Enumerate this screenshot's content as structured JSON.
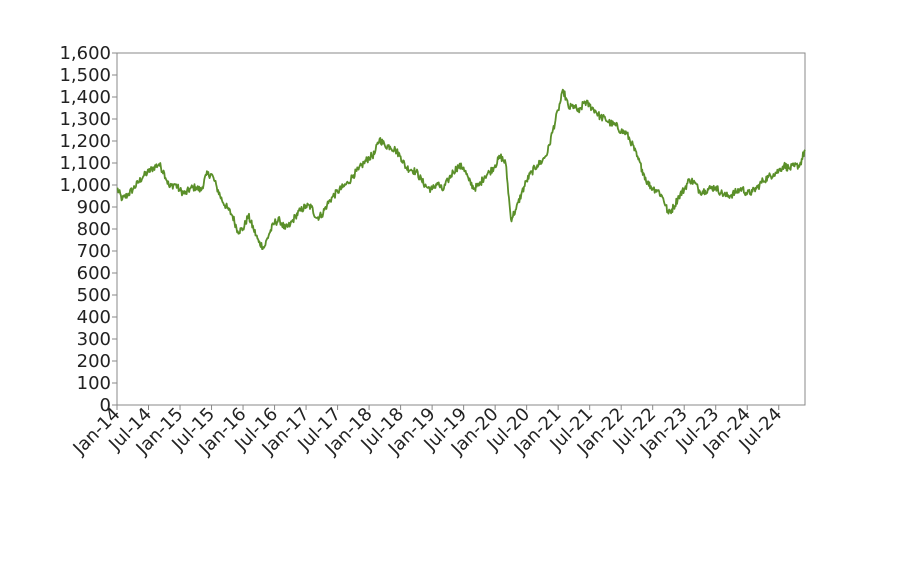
{
  "chart_data": {
    "type": "line",
    "title": "",
    "xlabel": "",
    "ylabel": "",
    "ylim": [
      0,
      1600
    ],
    "xlim": [
      "2014-01",
      "2024-12"
    ],
    "y_ticks": [
      0,
      100,
      200,
      300,
      400,
      500,
      600,
      700,
      800,
      900,
      1000,
      1100,
      1200,
      1300,
      1400,
      1500,
      1600
    ],
    "y_tick_labels": [
      "0",
      "100",
      "200",
      "300",
      "400",
      "500",
      "600",
      "700",
      "800",
      "900",
      "1,000",
      "1,100",
      "1,200",
      "1,300",
      "1,400",
      "1,500",
      "1,600"
    ],
    "x_ticks": [
      "2014-01",
      "2014-07",
      "2015-01",
      "2015-07",
      "2016-01",
      "2016-07",
      "2017-01",
      "2017-07",
      "2018-01",
      "2018-07",
      "2019-01",
      "2019-07",
      "2020-01",
      "2020-07",
      "2021-01",
      "2021-07",
      "2022-01",
      "2022-07",
      "2023-01",
      "2023-07",
      "2024-01",
      "2024-07"
    ],
    "x_tick_labels": [
      "Jan-14",
      "Jul-14",
      "Jan-15",
      "Jul-15",
      "Jan-16",
      "Jul-16",
      "Jan-17",
      "Jul-17",
      "Jan-18",
      "Jul-18",
      "Jan-19",
      "Jul-19",
      "Jan-20",
      "Jul-20",
      "Jan-21",
      "Jul-21",
      "Jan-22",
      "Jul-22",
      "Jan-23",
      "Jul-23",
      "Jan-24",
      "Jul-24"
    ],
    "grid": false,
    "legend": "none",
    "series": [
      {
        "color": "#5a8f29",
        "x": [
          "2014-01",
          "2014-02",
          "2014-03",
          "2014-04",
          "2014-05",
          "2014-06",
          "2014-07",
          "2014-08",
          "2014-09",
          "2014-10",
          "2014-11",
          "2014-12",
          "2015-01",
          "2015-02",
          "2015-03",
          "2015-04",
          "2015-05",
          "2015-06",
          "2015-07",
          "2015-08",
          "2015-09",
          "2015-10",
          "2015-11",
          "2015-12",
          "2016-01",
          "2016-02",
          "2016-03",
          "2016-04",
          "2016-05",
          "2016-06",
          "2016-07",
          "2016-08",
          "2016-09",
          "2016-10",
          "2016-11",
          "2016-12",
          "2017-01",
          "2017-02",
          "2017-03",
          "2017-04",
          "2017-05",
          "2017-06",
          "2017-07",
          "2017-08",
          "2017-09",
          "2017-10",
          "2017-11",
          "2017-12",
          "2018-01",
          "2018-02",
          "2018-03",
          "2018-04",
          "2018-05",
          "2018-06",
          "2018-07",
          "2018-08",
          "2018-09",
          "2018-10",
          "2018-11",
          "2018-12",
          "2019-01",
          "2019-02",
          "2019-03",
          "2019-04",
          "2019-05",
          "2019-06",
          "2019-07",
          "2019-08",
          "2019-09",
          "2019-10",
          "2019-11",
          "2019-12",
          "2020-01",
          "2020-02",
          "2020-03",
          "2020-04",
          "2020-05",
          "2020-06",
          "2020-07",
          "2020-08",
          "2020-09",
          "2020-10",
          "2020-11",
          "2020-12",
          "2021-01",
          "2021-02",
          "2021-03",
          "2021-04",
          "2021-05",
          "2021-06",
          "2021-07",
          "2021-08",
          "2021-09",
          "2021-10",
          "2021-11",
          "2021-12",
          "2022-01",
          "2022-02",
          "2022-03",
          "2022-04",
          "2022-05",
          "2022-06",
          "2022-07",
          "2022-08",
          "2022-09",
          "2022-10",
          "2022-11",
          "2022-12",
          "2023-01",
          "2023-02",
          "2023-03",
          "2023-04",
          "2023-05",
          "2023-06",
          "2023-07",
          "2023-08",
          "2023-09",
          "2023-10",
          "2023-11",
          "2023-12",
          "2024-01",
          "2024-02",
          "2024-03",
          "2024-04",
          "2024-05",
          "2024-06",
          "2024-07",
          "2024-08",
          "2024-09",
          "2024-10",
          "2024-11",
          "2024-12"
        ],
        "y": [
          985,
          935,
          955,
          980,
          1010,
          1040,
          1060,
          1080,
          1095,
          1055,
          990,
          1005,
          975,
          960,
          985,
          990,
          975,
          1045,
          1050,
          990,
          930,
          895,
          860,
          790,
          800,
          860,
          800,
          740,
          715,
          780,
          830,
          840,
          800,
          820,
          860,
          885,
          905,
          900,
          850,
          865,
          910,
          945,
          970,
          990,
          1010,
          1045,
          1070,
          1100,
          1125,
          1140,
          1210,
          1180,
          1175,
          1160,
          1130,
          1080,
          1070,
          1060,
          1020,
          990,
          980,
          1010,
          975,
          1020,
          1060,
          1085,
          1080,
          1020,
          985,
          1000,
          1040,
          1060,
          1090,
          1130,
          1100,
          845,
          890,
          960,
          1020,
          1060,
          1090,
          1110,
          1150,
          1250,
          1340,
          1430,
          1350,
          1360,
          1330,
          1380,
          1360,
          1340,
          1310,
          1300,
          1280,
          1270,
          1245,
          1235,
          1190,
          1130,
          1070,
          1010,
          985,
          975,
          940,
          870,
          900,
          950,
          980,
          1025,
          1010,
          970,
          975,
          985,
          990,
          965,
          950,
          955,
          970,
          985,
          960,
          970,
          990,
          1020,
          1035,
          1050,
          1065,
          1090,
          1075,
          1085,
          1090,
          1160
        ]
      }
    ]
  }
}
